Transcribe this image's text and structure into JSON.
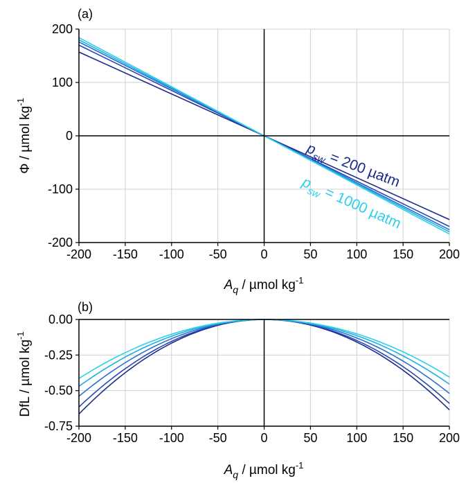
{
  "colors": {
    "series": [
      "#1c2a8c",
      "#2747b5",
      "#2a6fd0",
      "#1eaee0",
      "#2ad0ea"
    ],
    "grid": "#d0d0d0",
    "axis": "#000000"
  },
  "chart_data": [
    {
      "panel_label": "(a)",
      "type": "line",
      "xlabel_main": "A",
      "xlabel_sub": "q",
      "xlabel_rest": " / µmol kg",
      "xlabel_sup": "-1",
      "ylabel_main": "Φ / µmol kg",
      "ylabel_sup": "-1",
      "xlim": [
        -200,
        200
      ],
      "ylim": [
        -200,
        200
      ],
      "xticks": [
        "-200",
        "-150",
        "-100",
        "-50",
        "0",
        "50",
        "100",
        "150",
        "200"
      ],
      "yticks": [
        "200",
        "100",
        "0",
        "-100",
        "-200"
      ],
      "grid": true,
      "series": [
        {
          "x": [
            -200,
            200
          ],
          "y": [
            157,
            -157
          ]
        },
        {
          "x": [
            -200,
            200
          ],
          "y": [
            170,
            -170
          ]
        },
        {
          "x": [
            -200,
            200
          ],
          "y": [
            176,
            -176
          ]
        },
        {
          "x": [
            -200,
            200
          ],
          "y": [
            180,
            -180
          ]
        },
        {
          "x": [
            -200,
            200
          ],
          "y": [
            184,
            -184
          ]
        }
      ],
      "annotations": [
        {
          "p": "p",
          "sub": "sw",
          "text": " = 200 µatm",
          "color": "#1c2a8c",
          "x": 45,
          "y": -30,
          "rotation": 21
        },
        {
          "p": "p",
          "sub": "sw",
          "text": " = 1000 µatm",
          "color": "#2ad0ea",
          "x": 40,
          "y": -93,
          "rotation": 24
        }
      ]
    },
    {
      "panel_label": "(b)",
      "type": "line",
      "xlabel_main": "A",
      "xlabel_sub": "q",
      "xlabel_rest": " / µmol kg",
      "xlabel_sup": "-1",
      "ylabel_main": "DfL / µmol kg",
      "ylabel_sup": "-1",
      "xlim": [
        -200,
        200
      ],
      "ylim": [
        -0.75,
        0
      ],
      "xticks": [
        "-200",
        "-150",
        "-100",
        "-50",
        "0",
        "50",
        "100",
        "150",
        "200"
      ],
      "yticks": [
        "0.00",
        "-0.25",
        "-0.50",
        "-0.75"
      ],
      "grid": true,
      "series": [
        {
          "left_end": -0.665,
          "right_end": -0.635
        },
        {
          "left_end": -0.615,
          "right_end": -0.59
        },
        {
          "left_end": -0.54,
          "right_end": -0.52
        },
        {
          "left_end": -0.47,
          "right_end": -0.455
        },
        {
          "left_end": -0.415,
          "right_end": -0.405
        }
      ]
    }
  ]
}
